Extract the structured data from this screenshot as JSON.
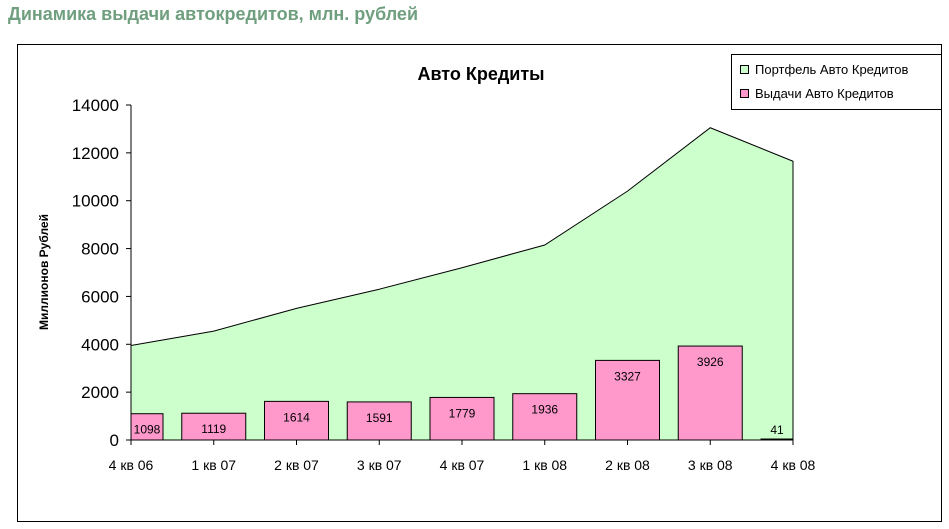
{
  "page": {
    "heading": "Динамика выдачи автокредитов, млн. рублей"
  },
  "colors": {
    "heading": "#6f9f7f",
    "portfolio_fill": "#ccffcc",
    "issues_fill": "#ff99cc",
    "outline": "#000000"
  },
  "chart_data": {
    "type": "area",
    "title": "Авто Кредиты",
    "xlabel": "",
    "ylabel": "Миллионов Рублей",
    "ylim": [
      0,
      14000
    ],
    "yticks": [
      0,
      2000,
      4000,
      6000,
      8000,
      10000,
      12000,
      14000
    ],
    "categories": [
      "4 кв 06",
      "1 кв 07",
      "2 кв 07",
      "3 кв 07",
      "4 кв 07",
      "1 кв 08",
      "2 кв 08",
      "3 кв 08",
      "4 кв 08"
    ],
    "grid": false,
    "legend_position": "top-right",
    "series": [
      {
        "name": "Портфель Авто Кредитов",
        "type": "area",
        "values": [
          3950,
          4550,
          5500,
          6300,
          7200,
          8150,
          10400,
          13050,
          11650
        ]
      },
      {
        "name": "Выдачи Авто Кредитов",
        "type": "bar",
        "values": [
          1098,
          1119,
          1614,
          1591,
          1779,
          1936,
          3327,
          3926,
          41
        ],
        "data_labels": [
          "1098",
          "1119",
          "1614",
          "1591",
          "1779",
          "1936",
          "3327",
          "3926",
          "41"
        ]
      }
    ]
  }
}
